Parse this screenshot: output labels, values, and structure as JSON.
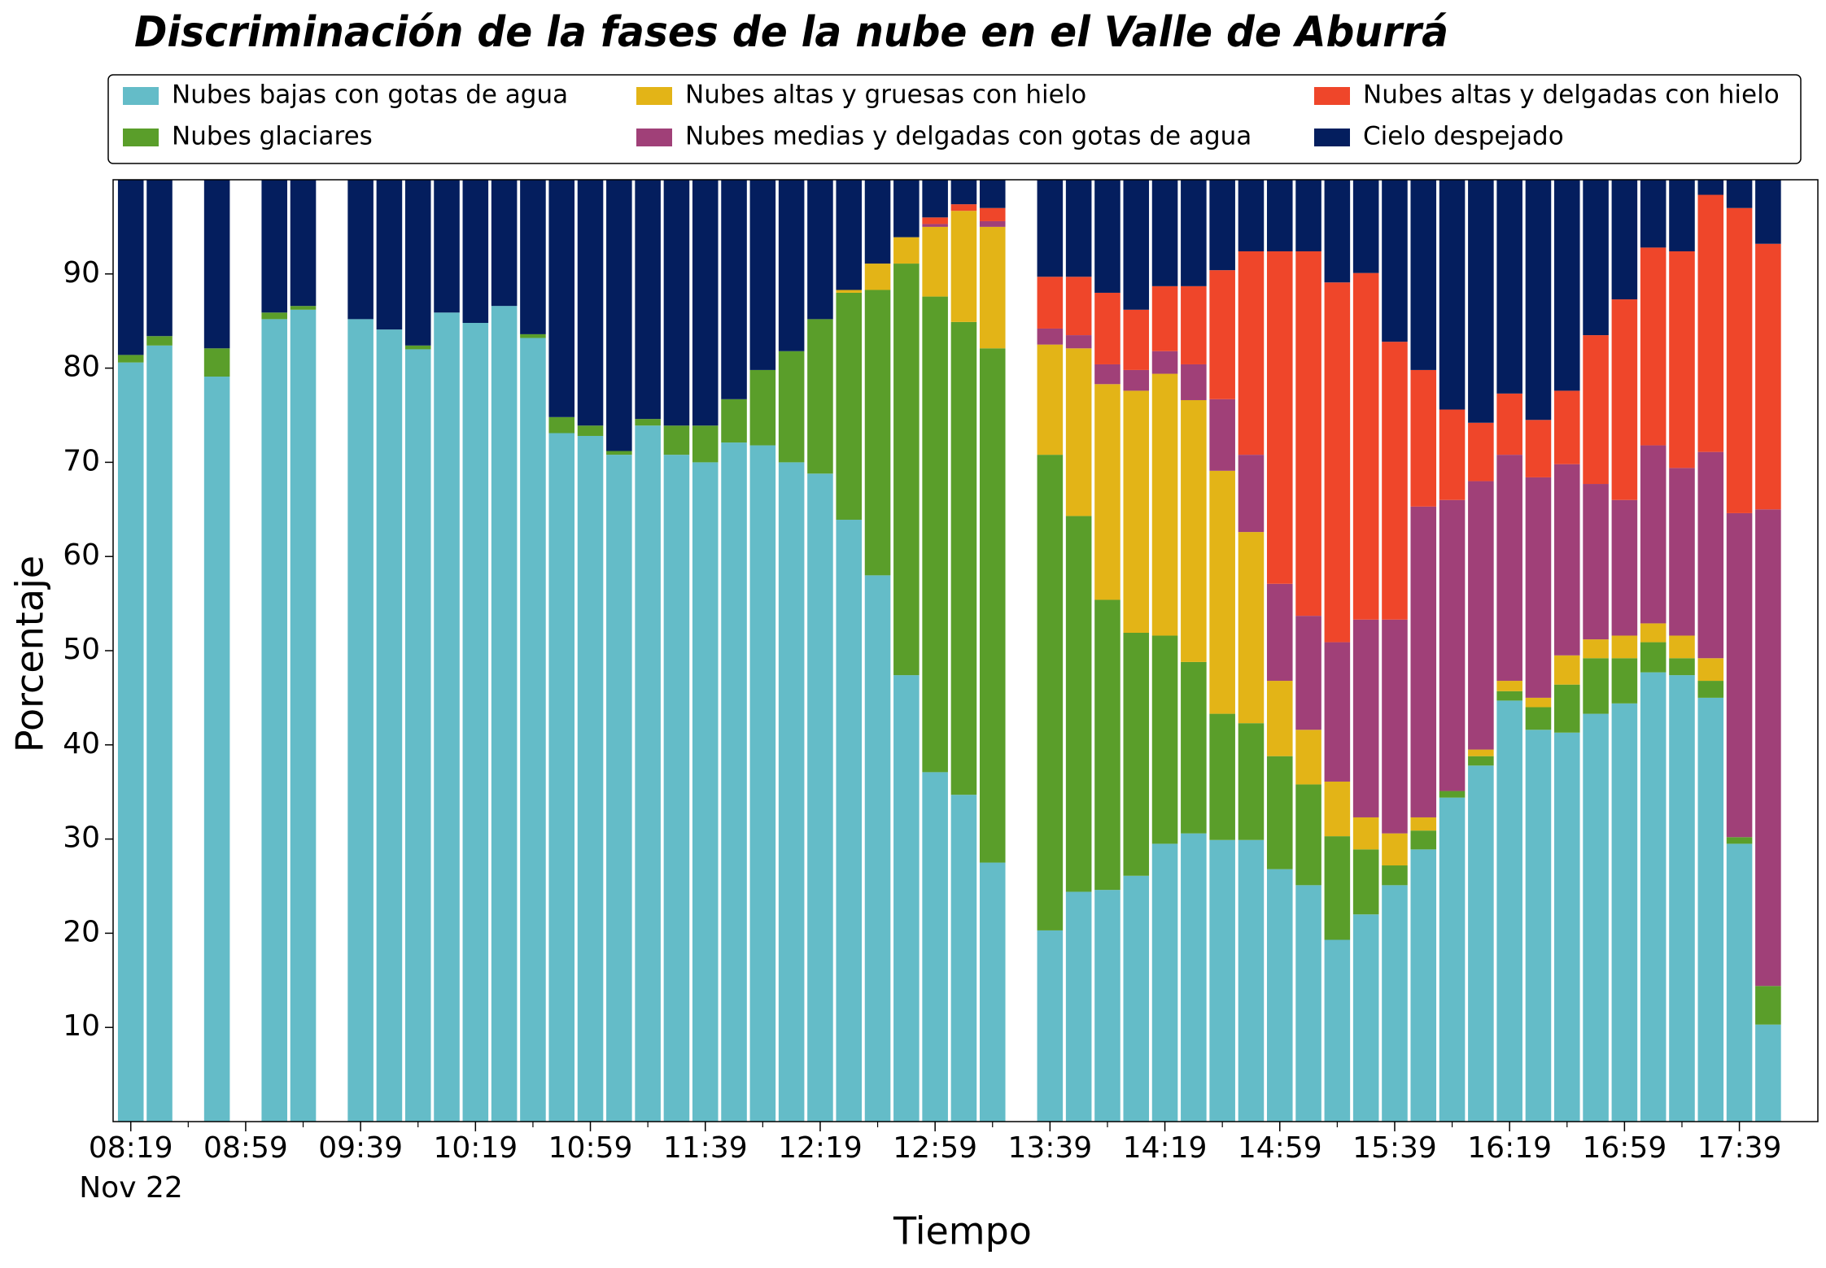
{
  "chart_data": {
    "type": "stacked_bar",
    "title": "Discriminación de la fases de la nube en el Valle de Aburrá",
    "xlabel": "Tiempo",
    "ylabel": "Porcentaje",
    "date_label": "Nov 22",
    "categories": [
      "08:19",
      null,
      null,
      null,
      "08:59",
      null,
      null,
      null,
      "09:39",
      null,
      null,
      null,
      "10:19",
      null,
      null,
      null,
      "10:59",
      null,
      null,
      null,
      "11:39",
      null,
      null,
      null,
      "12:19",
      null,
      null,
      null,
      "12:59",
      null,
      null,
      null,
      "13:39",
      null,
      null,
      null,
      "14:19",
      null,
      null,
      null,
      "14:59",
      null,
      null,
      null,
      "15:39",
      null,
      null,
      null,
      "16:19",
      null,
      null,
      null,
      "16:59",
      null,
      null,
      null,
      "17:39",
      null
    ],
    "series": [
      {
        "name": "Nubes bajas con gotas de agua",
        "color": "#64bcc8",
        "values": [
          80.6,
          82.4,
          null,
          79.1,
          null,
          85.2,
          86.2,
          null,
          85.2,
          84.1,
          82.0,
          85.9,
          84.8,
          86.6,
          83.2,
          73.1,
          72.8,
          70.8,
          73.9,
          70.8,
          70.0,
          72.1,
          71.8,
          70.0,
          68.8,
          63.9,
          58.0,
          47.4,
          37.1,
          34.7,
          27.5,
          null,
          20.3,
          24.4,
          24.6,
          26.1,
          29.5,
          30.6,
          29.9,
          29.9,
          26.8,
          25.1,
          19.3,
          22.0,
          25.1,
          28.9,
          34.4,
          37.8,
          44.7,
          41.6,
          41.3,
          43.3,
          44.4,
          47.7,
          47.4,
          45.0,
          29.5,
          10.3
        ]
      },
      {
        "name": "Nubes glaciares",
        "color": "#5a9e2a",
        "values": [
          0.8,
          1.0,
          null,
          3.0,
          null,
          0.7,
          0.4,
          null,
          0,
          0,
          0.4,
          0,
          0,
          0,
          0.4,
          1.7,
          1.1,
          0.4,
          0.7,
          3.1,
          3.9,
          4.6,
          8.0,
          11.8,
          16.4,
          24.1,
          30.3,
          43.7,
          50.5,
          50.2,
          54.6,
          null,
          50.5,
          39.9,
          30.8,
          25.8,
          22.1,
          18.2,
          13.4,
          12.4,
          12.0,
          10.7,
          11.0,
          6.9,
          2.1,
          2.0,
          0.7,
          1.0,
          1.0,
          2.4,
          5.1,
          5.9,
          4.8,
          3.2,
          1.8,
          1.8,
          0.7,
          4.1
        ]
      },
      {
        "name": "Nubes altas y gruesas con hielo",
        "color": "#e3b417",
        "values": [
          0,
          0,
          null,
          0,
          null,
          0,
          0,
          null,
          0,
          0,
          0,
          0,
          0,
          0,
          0,
          0,
          0,
          0,
          0,
          0,
          0,
          0,
          0,
          0,
          0,
          0.3,
          2.8,
          2.8,
          7.4,
          11.8,
          12.9,
          null,
          11.7,
          17.8,
          22.9,
          25.7,
          27.8,
          27.8,
          25.8,
          20.3,
          8.0,
          5.8,
          5.8,
          3.4,
          3.4,
          1.4,
          0,
          0.7,
          1.1,
          1.0,
          3.1,
          2.0,
          2.4,
          2.0,
          2.4,
          2.4,
          0,
          0
        ]
      },
      {
        "name": "Nubes medias y delgadas con gotas de agua",
        "color": "#a04078",
        "values": [
          0,
          0,
          null,
          0,
          null,
          0,
          0,
          null,
          0,
          0,
          0,
          0,
          0,
          0,
          0,
          0,
          0,
          0,
          0,
          0,
          0,
          0,
          0,
          0,
          0,
          0,
          0,
          0,
          0.3,
          0,
          0.6,
          null,
          1.7,
          1.4,
          2.1,
          2.2,
          2.4,
          3.8,
          7.6,
          8.2,
          10.3,
          12.1,
          14.8,
          21.0,
          22.7,
          33.0,
          30.9,
          28.5,
          24.0,
          23.4,
          20.3,
          16.5,
          14.4,
          18.9,
          17.8,
          21.9,
          34.4,
          50.6
        ]
      },
      {
        "name": "Nubes altas y delgadas con hielo",
        "color": "#ef462a",
        "values": [
          0,
          0,
          null,
          0,
          null,
          0,
          0,
          null,
          0,
          0,
          0,
          0,
          0,
          0,
          0,
          0,
          0,
          0,
          0,
          0,
          0,
          0,
          0,
          0,
          0,
          0,
          0,
          0,
          0.7,
          0.7,
          1.4,
          null,
          5.5,
          6.2,
          7.6,
          6.4,
          6.9,
          8.3,
          13.7,
          21.6,
          35.3,
          38.7,
          38.2,
          36.8,
          29.5,
          14.5,
          9.6,
          6.2,
          6.5,
          6.1,
          7.8,
          15.8,
          21.3,
          21.0,
          23.0,
          27.3,
          32.4,
          28.2
        ]
      },
      {
        "name": "Cielo despejado",
        "color": "#041e5e",
        "values": [
          18.6,
          16.6,
          null,
          17.9,
          null,
          14.1,
          13.4,
          null,
          14.8,
          15.9,
          17.6,
          14.1,
          15.2,
          13.4,
          16.4,
          25.2,
          26.1,
          28.8,
          25.4,
          26.1,
          26.1,
          23.3,
          20.2,
          18.2,
          14.8,
          11.7,
          8.9,
          6.1,
          4.0,
          2.6,
          3.0,
          null,
          10.3,
          10.3,
          12.0,
          13.8,
          11.3,
          11.3,
          9.6,
          7.6,
          7.6,
          7.6,
          10.9,
          9.9,
          17.2,
          20.2,
          24.4,
          25.8,
          22.7,
          25.5,
          22.4,
          16.5,
          12.7,
          7.2,
          7.6,
          1.6,
          3.0,
          6.8
        ]
      }
    ],
    "ylim": [
      0,
      100
    ],
    "yticks": [
      10,
      20,
      30,
      40,
      50,
      60,
      70,
      80,
      90
    ],
    "grid": false
  }
}
